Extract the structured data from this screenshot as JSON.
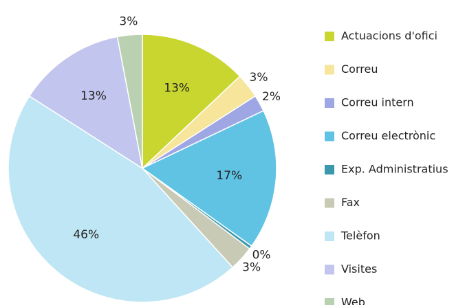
{
  "chart_data": {
    "type": "pie",
    "categories": [
      "Actuacions d'ofici",
      "Correu",
      "Correu intern",
      "Correu electrònic",
      "Exp. Administratius",
      "Fax",
      "Telèfon",
      "Visites",
      "Web"
    ],
    "values": [
      13,
      3,
      2,
      17,
      0.4,
      3,
      46,
      13,
      3
    ],
    "value_labels": [
      "13%",
      "3%",
      "2%",
      "17%",
      "0%",
      "3%",
      "46%",
      "13%",
      "3%"
    ],
    "colors": [
      "#c9d62f",
      "#f6e59a",
      "#9ea7e3",
      "#60c3e4",
      "#3a98ac",
      "#c9cab5",
      "#bfe6f4",
      "#c2c5ee",
      "#b9d1b1"
    ],
    "legend": "right"
  }
}
